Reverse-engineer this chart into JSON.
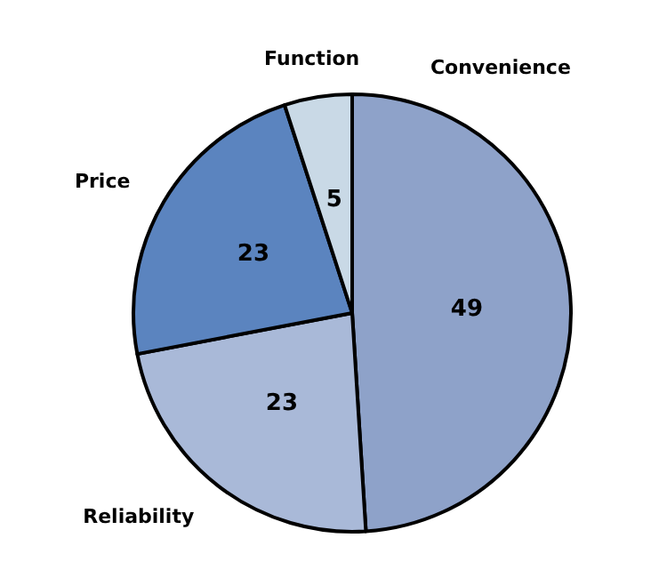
{
  "chart_data": {
    "type": "pie",
    "categories": [
      "Convenience",
      "Reliability",
      "Price",
      "Function"
    ],
    "values": [
      49,
      23,
      23,
      5
    ],
    "colors": [
      "#8ea2c9",
      "#a9b9d8",
      "#5b84bf",
      "#c9d9e6"
    ],
    "data_labels": true,
    "legend": false
  }
}
